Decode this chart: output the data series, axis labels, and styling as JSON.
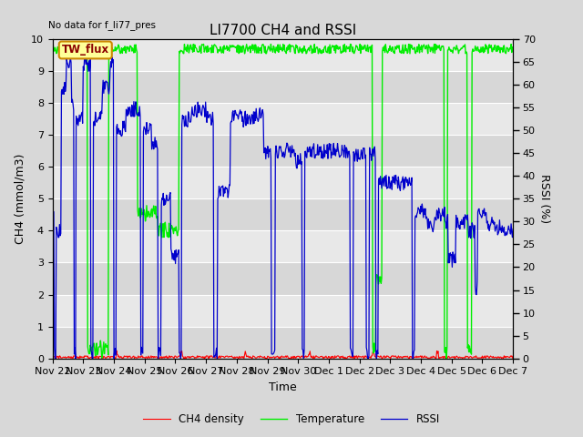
{
  "title": "LI7700 CH4 and RSSI",
  "top_left_text": "No data for f_li77_pres",
  "annotation_box": "TW_flux",
  "xlabel": "Time",
  "ylabel_left": "CH4 (mmol/m3)",
  "ylabel_right": "RSSI (%)",
  "ylim_left": [
    0,
    10.0
  ],
  "ylim_right": [
    0,
    70
  ],
  "yticks_left": [
    0.0,
    1.0,
    2.0,
    3.0,
    4.0,
    5.0,
    6.0,
    7.0,
    8.0,
    9.0,
    10.0
  ],
  "yticks_right": [
    0,
    5,
    10,
    15,
    20,
    25,
    30,
    35,
    40,
    45,
    50,
    55,
    60,
    65,
    70
  ],
  "bg_color": "#d8d8d8",
  "plot_bg_color": "#e8e8e8",
  "grid_color": "#ffffff",
  "ch4_color": "#ff0000",
  "temp_color": "#00ee00",
  "rssi_color": "#0000cc",
  "legend_labels": [
    "CH4 density",
    "Temperature",
    "RSSI"
  ],
  "title_fontsize": 11,
  "axis_fontsize": 9,
  "tick_fontsize": 8,
  "tick_labels": [
    "Nov 22",
    "Nov 23",
    "Nov 24",
    "Nov 25",
    "Nov 26",
    "Nov 27",
    "Nov 28",
    "Nov 29",
    "Nov 30",
    "Dec 1",
    "Dec 2",
    "Dec 3",
    "Dec 4",
    "Dec 5",
    "Dec 6",
    "Dec 7"
  ]
}
